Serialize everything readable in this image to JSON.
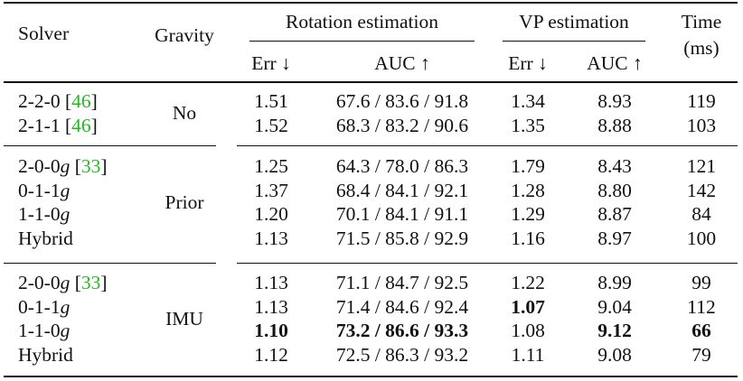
{
  "header": {
    "solver": "Solver",
    "gravity": "Gravity",
    "rotation_estimation": "Rotation estimation",
    "vp_estimation": "VP estimation",
    "time": "Time",
    "time_unit": "(ms)",
    "err": "Err ↓",
    "auc": "AUC ↑"
  },
  "groups": [
    {
      "gravity": "No",
      "rows": [
        {
          "solver": "2-2-0 ",
          "cite": "[46]",
          "suffix": "",
          "rot_err": "1.51",
          "rot_auc": "67.6 / 83.6 / 91.8",
          "vp_err": "1.34",
          "vp_auc": "8.93",
          "time": "119"
        },
        {
          "solver": "2-1-1 ",
          "cite": "[46]",
          "suffix": "",
          "rot_err": "1.52",
          "rot_auc": "68.3 / 83.2 / 90.6",
          "vp_err": "1.35",
          "vp_auc": "8.88",
          "time": "103"
        }
      ]
    },
    {
      "gravity": "Prior",
      "rows": [
        {
          "solver": "2-0-0",
          "suffix": "g",
          "cite": "[33]",
          "rot_err": "1.25",
          "rot_auc": "64.3 / 78.0 / 86.3",
          "vp_err": "1.79",
          "vp_auc": "8.43",
          "time": "121"
        },
        {
          "solver": "0-1-1",
          "suffix": "g",
          "cite": "",
          "rot_err": "1.37",
          "rot_auc": "68.4 / 84.1 / 92.1",
          "vp_err": "1.28",
          "vp_auc": "8.80",
          "time": "142"
        },
        {
          "solver": "1-1-0",
          "suffix": "g",
          "cite": "",
          "rot_err": "1.20",
          "rot_auc": "70.1 / 84.1 / 91.1",
          "vp_err": "1.29",
          "vp_auc": "8.87",
          "time": "84"
        },
        {
          "solver": "Hybrid",
          "suffix": "",
          "cite": "",
          "rot_err": "1.13",
          "rot_auc": "71.5 / 85.8 / 92.9",
          "vp_err": "1.16",
          "vp_auc": "8.97",
          "time": "100"
        }
      ]
    },
    {
      "gravity": "IMU",
      "rows": [
        {
          "solver": "2-0-0",
          "suffix": "g",
          "cite": "[33]",
          "rot_err": "1.13",
          "rot_auc": "71.1 / 84.7 / 92.5",
          "vp_err": "1.22",
          "vp_auc": "8.99",
          "time": "99"
        },
        {
          "solver": "0-1-1",
          "suffix": "g",
          "cite": "",
          "rot_err": "1.13",
          "rot_auc": "71.4 / 84.6 / 92.4",
          "vp_err": "1.07",
          "vp_auc": "9.04",
          "time": "112",
          "bold": [
            "vp_err"
          ]
        },
        {
          "solver": "1-1-0",
          "suffix": "g",
          "cite": "",
          "rot_err": "1.10",
          "rot_auc": "73.2 / 86.6 / 93.3",
          "vp_err": "1.08",
          "vp_auc": "9.12",
          "time": "66",
          "bold": [
            "rot_err",
            "rot_auc",
            "vp_auc",
            "time"
          ]
        },
        {
          "solver": "Hybrid",
          "suffix": "",
          "cite": "",
          "rot_err": "1.12",
          "rot_auc": "72.5 / 86.3 / 93.2",
          "vp_err": "1.11",
          "vp_auc": "9.08",
          "time": "79"
        }
      ]
    }
  ],
  "colors": {
    "citation": "#22b822",
    "text": "#111111"
  }
}
